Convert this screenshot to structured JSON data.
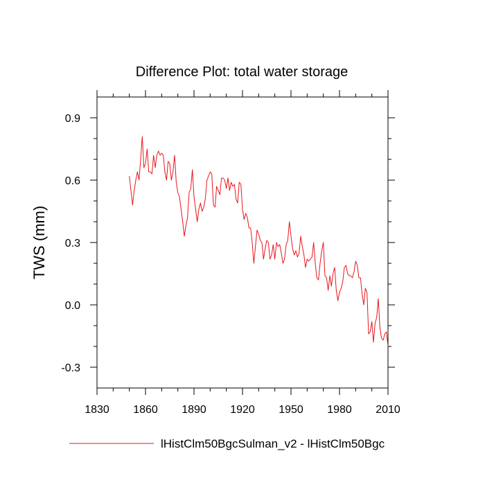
{
  "chart_data": {
    "type": "line",
    "title": "Difference Plot: total water storage",
    "xlabel": "",
    "ylabel": "TWS  (mm)",
    "xlim": [
      1830,
      2010
    ],
    "ylim": [
      -0.4,
      1.0
    ],
    "xticks": [
      1830,
      1860,
      1890,
      1920,
      1950,
      1980,
      2010
    ],
    "xtick_labels": [
      "1830",
      "1860",
      "1890",
      "1920",
      "1950",
      "1980",
      "2010"
    ],
    "yticks": [
      -0.3,
      0.0,
      0.3,
      0.6,
      0.9
    ],
    "ytick_labels": [
      "-0.3",
      "0.0",
      "0.3",
      "0.6",
      "0.9"
    ],
    "legend_position": "bottom",
    "colors": {
      "series": "#e8141b",
      "axes": "#000000"
    },
    "series": [
      {
        "name": "lHistClm50BgcSulman_v2 - lHistClm50Bgc",
        "x": [
          1850,
          1851,
          1852,
          1853,
          1854,
          1855,
          1856,
          1857,
          1858,
          1859,
          1860,
          1861,
          1862,
          1863,
          1864,
          1865,
          1866,
          1867,
          1868,
          1869,
          1870,
          1871,
          1872,
          1873,
          1874,
          1875,
          1876,
          1877,
          1878,
          1879,
          1880,
          1881,
          1882,
          1883,
          1884,
          1885,
          1886,
          1887,
          1888,
          1889,
          1890,
          1891,
          1892,
          1893,
          1894,
          1895,
          1896,
          1897,
          1898,
          1899,
          1900,
          1901,
          1902,
          1903,
          1904,
          1905,
          1906,
          1907,
          1908,
          1909,
          1910,
          1911,
          1912,
          1913,
          1914,
          1915,
          1916,
          1917,
          1918,
          1919,
          1920,
          1921,
          1922,
          1923,
          1924,
          1925,
          1926,
          1927,
          1928,
          1929,
          1930,
          1931,
          1932,
          1933,
          1934,
          1935,
          1936,
          1937,
          1938,
          1939,
          1940,
          1941,
          1942,
          1943,
          1944,
          1945,
          1946,
          1947,
          1948,
          1949,
          1950,
          1951,
          1952,
          1953,
          1954,
          1955,
          1956,
          1957,
          1958,
          1959,
          1960,
          1961,
          1962,
          1963,
          1964,
          1965,
          1966,
          1967,
          1968,
          1969,
          1970,
          1971,
          1972,
          1973,
          1974,
          1975,
          1976,
          1977,
          1978,
          1979,
          1980,
          1981,
          1982,
          1983,
          1984,
          1985,
          1986,
          1987,
          1988,
          1989,
          1990,
          1991,
          1992,
          1993,
          1994,
          1995,
          1996,
          1997,
          1998,
          1999,
          2000,
          2001,
          2002,
          2003,
          2004,
          2005,
          2006,
          2007,
          2008,
          2009,
          2010
        ],
        "values": [
          0.62,
          0.55,
          0.48,
          0.55,
          0.6,
          0.64,
          0.6,
          0.7,
          0.81,
          0.66,
          0.68,
          0.75,
          0.64,
          0.64,
          0.63,
          0.72,
          0.66,
          0.72,
          0.74,
          0.72,
          0.73,
          0.72,
          0.64,
          0.6,
          0.69,
          0.68,
          0.6,
          0.64,
          0.72,
          0.59,
          0.54,
          0.52,
          0.46,
          0.4,
          0.33,
          0.38,
          0.42,
          0.54,
          0.56,
          0.65,
          0.52,
          0.46,
          0.4,
          0.46,
          0.49,
          0.45,
          0.47,
          0.51,
          0.6,
          0.62,
          0.64,
          0.63,
          0.48,
          0.47,
          0.57,
          0.55,
          0.53,
          0.61,
          0.61,
          0.6,
          0.56,
          0.61,
          0.55,
          0.59,
          0.57,
          0.58,
          0.51,
          0.49,
          0.59,
          0.58,
          0.46,
          0.41,
          0.44,
          0.42,
          0.37,
          0.37,
          0.3,
          0.2,
          0.28,
          0.36,
          0.34,
          0.31,
          0.3,
          0.22,
          0.27,
          0.31,
          0.3,
          0.22,
          0.24,
          0.29,
          0.22,
          0.3,
          0.28,
          0.29,
          0.25,
          0.2,
          0.22,
          0.29,
          0.31,
          0.4,
          0.33,
          0.27,
          0.24,
          0.26,
          0.23,
          0.25,
          0.33,
          0.28,
          0.24,
          0.18,
          0.22,
          0.21,
          0.22,
          0.23,
          0.3,
          0.2,
          0.13,
          0.12,
          0.2,
          0.26,
          0.3,
          0.14,
          0.13,
          0.07,
          0.14,
          0.09,
          0.15,
          0.18,
          0.07,
          0.02,
          0.06,
          0.08,
          0.11,
          0.18,
          0.19,
          0.15,
          0.14,
          0.14,
          0.13,
          0.16,
          0.21,
          0.19,
          0.13,
          0.13,
          0.05,
          0.0,
          0.08,
          0.06,
          -0.14,
          -0.13,
          -0.08,
          -0.18,
          -0.09,
          -0.06,
          0.03,
          -0.11,
          -0.16,
          -0.17,
          -0.14,
          -0.13,
          -0.2
        ]
      }
    ]
  }
}
